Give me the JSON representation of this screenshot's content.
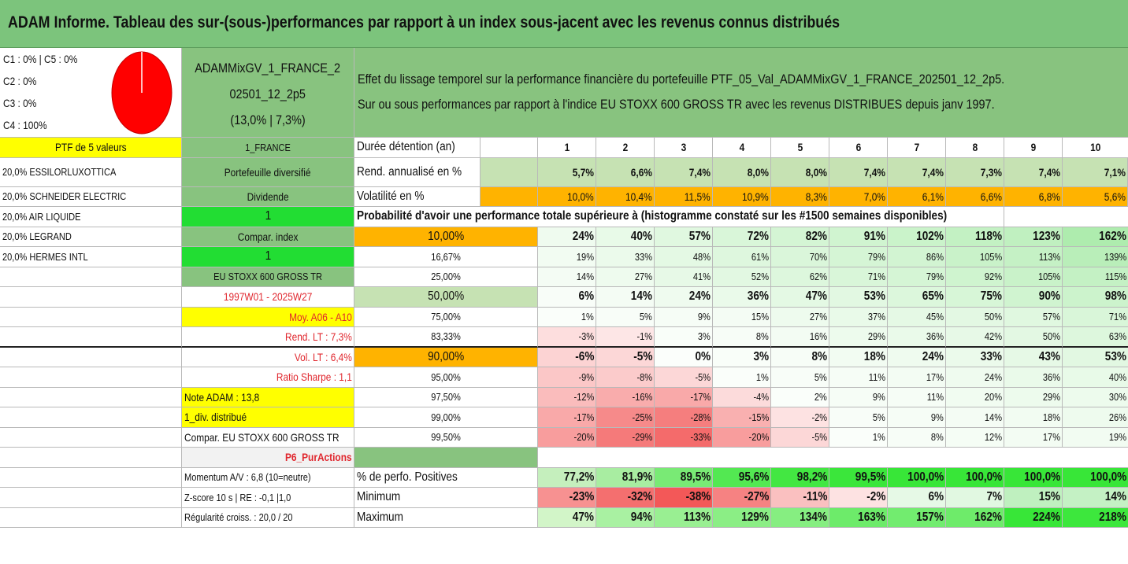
{
  "title": "ADAM Informe. Tableau des sur-(sous-)performances par rapport à un index sous-jacent avec les revenus connus distribués",
  "colors": {
    "header_green": "#7cc47c",
    "label_green": "#88c37f",
    "bright_green": "#22dd33",
    "yellow": "#ffff00",
    "orange": "#ffb300",
    "pale_green": "#c6e2b3",
    "red_text": "#e0262d",
    "pie_red": "#ff0000"
  },
  "legend": {
    "line1": "C1 : 0% | C5 : 0%",
    "line2": "C2 : 0%",
    "line3": "C3 : 0%",
    "line4": "C4 : 100%"
  },
  "portfolio": {
    "name_line1": "ADAMMixGV_1_FRANCE_2",
    "name_line2": "02501_12_2p5",
    "name_line3": "(13,0% | 7,3%)"
  },
  "description": {
    "line1": "Effet du lissage temporel sur la performance financière du portefeuille PTF_05_Val_ADAMMixGV_1_FRANCE_202501_12_2p5.",
    "line2": "Sur ou sous performances par rapport à l'indice EU STOXX 600 GROSS TR avec les revenus DISTRIBUES depuis janv 1997."
  },
  "left_column": {
    "header": "PTF de 5 valeurs",
    "holdings": [
      "20,0% ESSILORLUXOTTICA",
      "20,0% SCHNEIDER ELECTRIC",
      "20,0% AIR LIQUIDE",
      "20,0% LEGRAND",
      "20,0% HERMES INTL"
    ]
  },
  "middle_column": {
    "country": "1_FRANCE",
    "diversified": "Portefeuille diversifié",
    "dividend_label": "Dividende",
    "dividend_value": "1",
    "compar_index_label": "Compar. index",
    "compar_index_value": "1",
    "index_name": "EU STOXX 600 GROSS TR",
    "period": "1997W01 - 2025W27",
    "moy": "Moy. A06 - A10",
    "rend_lt": "Rend. LT : 7,3%",
    "vol_lt": "Vol. LT : 6,4%",
    "sharpe": "Ratio Sharpe : 1,1",
    "note_adam": "Note ADAM : 13,8",
    "div_distribue": "1_div. distribué",
    "compar_full": "Compar. EU STOXX 600 GROSS TR",
    "p6": "P6_PurActions",
    "momentum": "Momentum A/V : 6,8 (10=neutre)",
    "zscore": "Z-score 10 s | RE : -0,1 |1,0",
    "regularite": "Régularité croiss. : 20,0 / 20"
  },
  "table": {
    "duree_label": "Durée détention (an)",
    "years": [
      "1",
      "2",
      "3",
      "4",
      "5",
      "6",
      "7",
      "8",
      "9",
      "10"
    ],
    "rend_label": "Rend. annualisé en %",
    "rend": [
      "5,7%",
      "6,6%",
      "7,4%",
      "8,0%",
      "8,0%",
      "7,4%",
      "7,4%",
      "7,3%",
      "7,4%",
      "7,1%"
    ],
    "vol_label": "Volatilité en %",
    "vol": [
      "10,0%",
      "10,4%",
      "11,5%",
      "10,9%",
      "8,3%",
      "7,0%",
      "6,1%",
      "6,6%",
      "6,8%",
      "5,6%"
    ],
    "prob_title": "Probabilité d'avoir une performance totale supérieure à (histogramme constaté sur les #1500 semaines disponibles)",
    "quantiles": [
      {
        "p": "10,00%",
        "values": [
          "24%",
          "40%",
          "57%",
          "72%",
          "82%",
          "91%",
          "102%",
          "118%",
          "123%",
          "162%"
        ],
        "pct": [
          24,
          40,
          57,
          72,
          82,
          91,
          102,
          118,
          123,
          162
        ]
      },
      {
        "p": "16,67%",
        "values": [
          "19%",
          "33%",
          "48%",
          "61%",
          "70%",
          "79%",
          "86%",
          "105%",
          "113%",
          "139%"
        ],
        "pct": [
          19,
          33,
          48,
          61,
          70,
          79,
          86,
          105,
          113,
          139
        ]
      },
      {
        "p": "25,00%",
        "values": [
          "14%",
          "27%",
          "41%",
          "52%",
          "62%",
          "71%",
          "79%",
          "92%",
          "105%",
          "115%"
        ],
        "pct": [
          14,
          27,
          41,
          52,
          62,
          71,
          79,
          92,
          105,
          115
        ]
      },
      {
        "p": "50,00%",
        "values": [
          "6%",
          "14%",
          "24%",
          "36%",
          "47%",
          "53%",
          "65%",
          "75%",
          "90%",
          "98%"
        ],
        "pct": [
          6,
          14,
          24,
          36,
          47,
          53,
          65,
          75,
          90,
          98
        ]
      },
      {
        "p": "75,00%",
        "values": [
          "1%",
          "5%",
          "9%",
          "15%",
          "27%",
          "37%",
          "45%",
          "50%",
          "57%",
          "71%"
        ],
        "pct": [
          1,
          5,
          9,
          15,
          27,
          37,
          45,
          50,
          57,
          71
        ]
      },
      {
        "p": "83,33%",
        "values": [
          "-3%",
          "-1%",
          "3%",
          "8%",
          "16%",
          "29%",
          "36%",
          "42%",
          "50%",
          "63%"
        ],
        "pct": [
          -3,
          -1,
          3,
          8,
          16,
          29,
          36,
          42,
          50,
          63
        ]
      },
      {
        "p": "90,00%",
        "values": [
          "-6%",
          "-5%",
          "0%",
          "3%",
          "8%",
          "18%",
          "24%",
          "33%",
          "43%",
          "53%"
        ],
        "pct": [
          -6,
          -5,
          0,
          3,
          8,
          18,
          24,
          33,
          43,
          53
        ]
      },
      {
        "p": "95,00%",
        "values": [
          "-9%",
          "-8%",
          "-5%",
          "1%",
          "5%",
          "11%",
          "17%",
          "24%",
          "36%",
          "40%"
        ],
        "pct": [
          -9,
          -8,
          -5,
          1,
          5,
          11,
          17,
          24,
          36,
          40
        ]
      },
      {
        "p": "97,50%",
        "values": [
          "-12%",
          "-16%",
          "-17%",
          "-4%",
          "2%",
          "9%",
          "11%",
          "20%",
          "29%",
          "30%"
        ],
        "pct": [
          -12,
          -16,
          -17,
          -4,
          2,
          9,
          11,
          20,
          29,
          30
        ]
      },
      {
        "p": "99,00%",
        "values": [
          "-17%",
          "-25%",
          "-28%",
          "-15%",
          "-2%",
          "5%",
          "9%",
          "14%",
          "18%",
          "26%"
        ],
        "pct": [
          -17,
          -25,
          -28,
          -15,
          -2,
          5,
          9,
          14,
          18,
          26
        ]
      },
      {
        "p": "99,50%",
        "values": [
          "-20%",
          "-29%",
          "-33%",
          "-20%",
          "-5%",
          "1%",
          "8%",
          "12%",
          "17%",
          "19%"
        ],
        "pct": [
          -20,
          -29,
          -33,
          -20,
          -5,
          1,
          8,
          12,
          17,
          19
        ]
      }
    ],
    "pos_label": "% de perfo. Positives",
    "pos": [
      "77,2%",
      "81,9%",
      "89,5%",
      "95,6%",
      "98,2%",
      "99,5%",
      "100,0%",
      "100,0%",
      "100,0%",
      "100,0%"
    ],
    "pos_pct": [
      77.2,
      81.9,
      89.5,
      95.6,
      98.2,
      99.5,
      100,
      100,
      100,
      100
    ],
    "min_label": "Minimum",
    "min": [
      "-23%",
      "-32%",
      "-38%",
      "-27%",
      "-11%",
      "-2%",
      "6%",
      "7%",
      "15%",
      "14%"
    ],
    "min_pct": [
      -23,
      -32,
      -38,
      -27,
      -11,
      -2,
      6,
      7,
      15,
      14
    ],
    "max_label": "Maximum",
    "max": [
      "47%",
      "94%",
      "113%",
      "129%",
      "134%",
      "163%",
      "157%",
      "162%",
      "224%",
      "218%"
    ],
    "max_pct": [
      47,
      94,
      113,
      129,
      134,
      163,
      157,
      162,
      224,
      218
    ]
  }
}
